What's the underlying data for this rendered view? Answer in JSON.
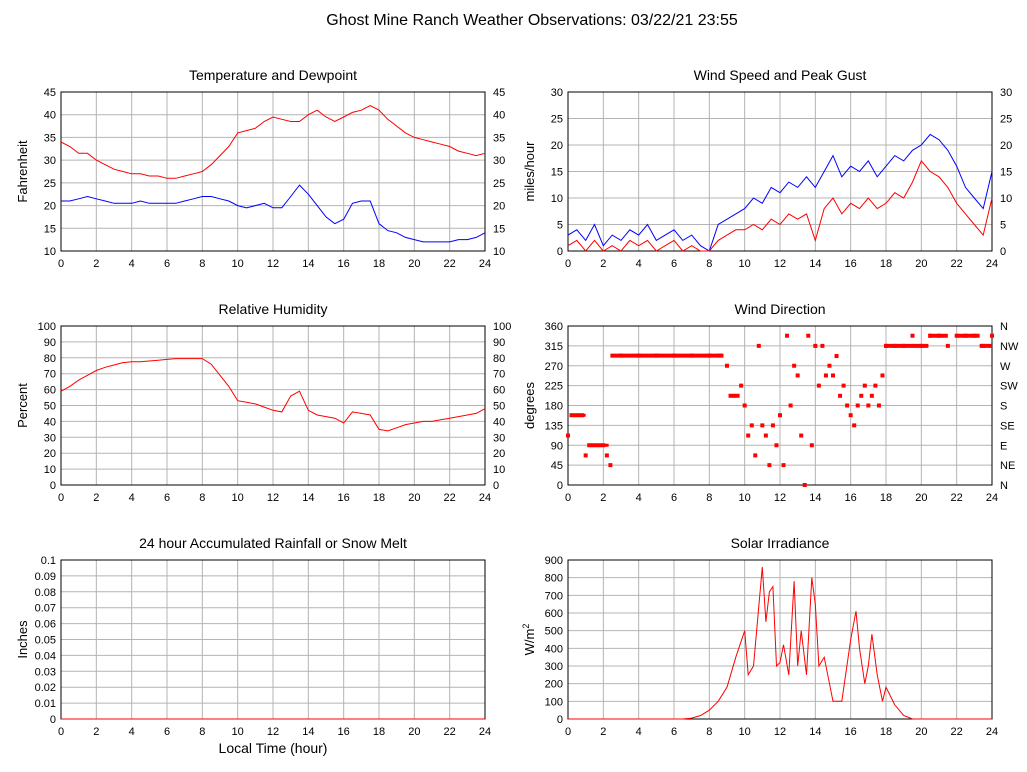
{
  "page": {
    "title": "Ghost Mine Ranch Weather Observations: 03/22/21 23:55"
  },
  "colors": {
    "red": "#ff0000",
    "blue": "#0000ff",
    "grid": "#b4b4b4",
    "axis": "#000000"
  },
  "chart_data": [
    {
      "id": "temp",
      "type": "line",
      "title": "Temperature and Dewpoint",
      "ylabel": "Fahrenheit",
      "xlabel": "",
      "xlim": [
        0,
        24
      ],
      "ylim": [
        10,
        45
      ],
      "xticks": [
        0,
        2,
        4,
        6,
        8,
        10,
        12,
        14,
        16,
        18,
        20,
        22,
        24
      ],
      "yticks": [
        10,
        15,
        20,
        25,
        30,
        35,
        40,
        45
      ],
      "right_axis": true,
      "grid": true,
      "series": [
        {
          "color": "#ff0000",
          "x": [
            0,
            0.5,
            1,
            1.5,
            2,
            2.5,
            3,
            3.5,
            4,
            4.5,
            5,
            5.5,
            6,
            6.5,
            7,
            7.5,
            8,
            8.5,
            9,
            9.5,
            10,
            10.5,
            11,
            11.5,
            12,
            12.5,
            13,
            13.5,
            14,
            14.5,
            15,
            15.5,
            16,
            16.5,
            17,
            17.5,
            18,
            18.5,
            19,
            19.5,
            20,
            20.5,
            21,
            21.5,
            22,
            22.5,
            23,
            23.5,
            24
          ],
          "y": [
            34,
            33,
            31.5,
            31.5,
            30,
            29,
            28,
            27.5,
            27,
            27,
            26.5,
            26.5,
            26,
            26,
            26.5,
            27,
            27.5,
            29,
            31,
            33,
            36,
            36.5,
            37,
            38.5,
            39.5,
            39,
            38.5,
            38.5,
            40,
            41,
            39.5,
            38.5,
            39.5,
            40.5,
            41,
            42,
            41,
            39,
            37.5,
            36,
            35,
            34.5,
            34,
            33.5,
            33,
            32,
            31.5,
            31,
            31.5
          ]
        },
        {
          "color": "#0000ff",
          "x": [
            0,
            0.5,
            1,
            1.5,
            2,
            2.5,
            3,
            3.5,
            4,
            4.5,
            5,
            5.5,
            6,
            6.5,
            7,
            7.5,
            8,
            8.5,
            9,
            9.5,
            10,
            10.5,
            11,
            11.5,
            12,
            12.5,
            13,
            13.5,
            14,
            14.5,
            15,
            15.5,
            16,
            16.5,
            17,
            17.5,
            18,
            18.5,
            19,
            19.5,
            20,
            20.5,
            21,
            21.5,
            22,
            22.5,
            23,
            23.5,
            24
          ],
          "y": [
            21,
            21,
            21.5,
            22,
            21.5,
            21,
            20.5,
            20.5,
            20.5,
            21,
            20.5,
            20.5,
            20.5,
            20.5,
            21,
            21.5,
            22,
            22,
            21.5,
            21,
            20,
            19.5,
            20,
            20.5,
            19.5,
            19.5,
            22,
            24.5,
            22.5,
            20,
            17.5,
            16,
            17,
            20.5,
            21,
            21,
            16,
            14.5,
            14,
            13,
            12.5,
            12,
            12,
            12,
            12,
            12.5,
            12.5,
            13,
            14
          ]
        }
      ]
    },
    {
      "id": "wind",
      "type": "line",
      "title": "Wind Speed and Peak Gust",
      "ylabel": "miles/hour",
      "xlabel": "",
      "xlim": [
        0,
        24
      ],
      "ylim": [
        0,
        30
      ],
      "xticks": [
        0,
        2,
        4,
        6,
        8,
        10,
        12,
        14,
        16,
        18,
        20,
        22,
        24
      ],
      "yticks": [
        0,
        5,
        10,
        15,
        20,
        25,
        30
      ],
      "right_axis": true,
      "grid": true,
      "series": [
        {
          "color": "#0000ff",
          "x": [
            0,
            0.5,
            1,
            1.5,
            2,
            2.5,
            3,
            3.5,
            4,
            4.5,
            5,
            5.5,
            6,
            6.5,
            7,
            7.5,
            8,
            8.5,
            9,
            9.5,
            10,
            10.5,
            11,
            11.5,
            12,
            12.5,
            13,
            13.5,
            14,
            14.5,
            15,
            15.5,
            16,
            16.5,
            17,
            17.5,
            18,
            18.5,
            19,
            19.5,
            20,
            20.5,
            21,
            21.5,
            22,
            22.5,
            23,
            23.5,
            24
          ],
          "y": [
            3,
            4,
            2,
            5,
            1,
            3,
            2,
            4,
            3,
            5,
            2,
            3,
            4,
            2,
            3,
            1,
            0,
            5,
            6,
            7,
            8,
            10,
            9,
            12,
            11,
            13,
            12,
            14,
            12,
            15,
            18,
            14,
            16,
            15,
            17,
            14,
            16,
            18,
            17,
            19,
            20,
            22,
            21,
            19,
            16,
            12,
            10,
            8,
            15
          ]
        },
        {
          "color": "#ff0000",
          "x": [
            0,
            0.5,
            1,
            1.5,
            2,
            2.5,
            3,
            3.5,
            4,
            4.5,
            5,
            5.5,
            6,
            6.5,
            7,
            7.5,
            8,
            8.5,
            9,
            9.5,
            10,
            10.5,
            11,
            11.5,
            12,
            12.5,
            13,
            13.5,
            14,
            14.5,
            15,
            15.5,
            16,
            16.5,
            17,
            17.5,
            18,
            18.5,
            19,
            19.5,
            20,
            20.5,
            21,
            21.5,
            22,
            22.5,
            23,
            23.5,
            24
          ],
          "y": [
            1,
            2,
            0,
            2,
            0,
            1,
            0,
            2,
            1,
            2,
            0,
            1,
            2,
            0,
            1,
            0,
            0,
            2,
            3,
            4,
            4,
            5,
            4,
            6,
            5,
            7,
            6,
            7,
            2,
            8,
            10,
            7,
            9,
            8,
            10,
            8,
            9,
            11,
            10,
            13,
            17,
            15,
            14,
            12,
            9,
            7,
            5,
            3,
            10
          ]
        }
      ]
    },
    {
      "id": "rh",
      "type": "line",
      "title": "Relative Humidity",
      "ylabel": "Percent",
      "xlabel": "",
      "xlim": [
        0,
        24
      ],
      "ylim": [
        0,
        100
      ],
      "xticks": [
        0,
        2,
        4,
        6,
        8,
        10,
        12,
        14,
        16,
        18,
        20,
        22,
        24
      ],
      "yticks": [
        0,
        10,
        20,
        30,
        40,
        50,
        60,
        70,
        80,
        90,
        100
      ],
      "right_axis": true,
      "grid": true,
      "series": [
        {
          "color": "#ff0000",
          "x": [
            0,
            0.5,
            1,
            1.5,
            2,
            2.5,
            3,
            3.5,
            4,
            4.5,
            5,
            5.5,
            6,
            6.5,
            7,
            7.5,
            8,
            8.5,
            9,
            9.5,
            10,
            10.5,
            11,
            11.5,
            12,
            12.5,
            13,
            13.5,
            14,
            14.5,
            15,
            15.5,
            16,
            16.5,
            17,
            17.5,
            18,
            18.5,
            19,
            19.5,
            20,
            20.5,
            21,
            21.5,
            22,
            22.5,
            23,
            23.5,
            24
          ],
          "y": [
            59,
            62,
            66,
            69,
            72,
            74,
            75.5,
            77,
            77.5,
            77.5,
            78,
            78.5,
            79,
            79.5,
            79.5,
            79.5,
            79.5,
            76,
            69,
            62,
            53,
            52,
            51,
            49,
            47,
            46,
            56,
            59,
            47,
            44,
            43,
            42,
            39,
            46,
            45,
            44,
            35,
            34,
            36,
            38,
            39,
            40,
            40,
            41,
            42,
            43,
            44,
            45,
            48
          ]
        }
      ]
    },
    {
      "id": "wdir",
      "type": "scatter",
      "title": "Wind Direction",
      "ylabel": "degrees",
      "xlabel": "",
      "xlim": [
        0,
        24
      ],
      "ylim": [
        0,
        360
      ],
      "xticks": [
        0,
        2,
        4,
        6,
        8,
        10,
        12,
        14,
        16,
        18,
        20,
        22,
        24
      ],
      "yticks": [
        0,
        45,
        90,
        135,
        180,
        225,
        270,
        315,
        360
      ],
      "right_ticklabels": [
        "N",
        "NE",
        "E",
        "SE",
        "S",
        "SW",
        "W",
        "NW",
        "N"
      ],
      "grid": true,
      "series": [
        {
          "color": "#ff0000",
          "x": [
            0,
            0.2,
            0.4,
            0.6,
            0.8,
            1.0,
            1.2,
            1.4,
            1.6,
            1.8,
            2.0,
            2.2,
            2.4,
            3.0,
            4.0,
            5.0,
            6.0,
            7.0,
            8.0,
            8.6,
            9.0,
            9.2,
            9.4,
            9.6,
            9.8,
            10.0,
            10.2,
            10.4,
            10.6,
            10.8,
            11.0,
            11.2,
            11.4,
            11.6,
            11.8,
            12.0,
            12.2,
            12.4,
            12.6,
            12.8,
            13.0,
            13.2,
            13.4,
            13.6,
            13.8,
            14.0,
            14.2,
            14.4,
            14.6,
            14.8,
            15.0,
            15.2,
            15.4,
            15.6,
            15.8,
            16.0,
            16.2,
            16.4,
            16.6,
            16.8,
            17.0,
            17.2,
            17.4,
            17.6,
            17.8,
            18.0,
            18.5,
            19.0,
            19.5,
            20.0,
            20.5,
            21.0,
            21.5,
            22.0,
            22.5,
            23.0,
            23.5,
            24.0
          ],
          "y": [
            112,
            158,
            158,
            158,
            158,
            67,
            90,
            90,
            90,
            90,
            90,
            67,
            45,
            293,
            293,
            293,
            293,
            293,
            293,
            293,
            270,
            202,
            202,
            202,
            225,
            180,
            112,
            135,
            67,
            315,
            135,
            112,
            45,
            135,
            90,
            158,
            45,
            338,
            180,
            270,
            248,
            112,
            0,
            338,
            90,
            315,
            225,
            315,
            248,
            270,
            248,
            292,
            202,
            225,
            180,
            158,
            135,
            180,
            202,
            225,
            180,
            202,
            225,
            180,
            248,
            315,
            315,
            315,
            338,
            315,
            338,
            338,
            315,
            338,
            338,
            338,
            315,
            338
          ]
        }
      ]
    },
    {
      "id": "rain",
      "type": "line",
      "title": "24 hour Accumulated Rainfall or Snow Melt",
      "ylabel": "Inches",
      "xlabel": "Local Time (hour)",
      "xlim": [
        0,
        24
      ],
      "ylim": [
        0,
        0.1
      ],
      "xticks": [
        0,
        2,
        4,
        6,
        8,
        10,
        12,
        14,
        16,
        18,
        20,
        22,
        24
      ],
      "yticks": [
        0,
        0.01,
        0.02,
        0.03,
        0.04,
        0.05,
        0.06,
        0.07,
        0.08,
        0.09,
        0.1
      ],
      "right_axis": false,
      "grid": true,
      "series": [
        {
          "color": "#ff0000",
          "x": [
            0,
            24
          ],
          "y": [
            0,
            0
          ]
        }
      ]
    },
    {
      "id": "solar",
      "type": "line",
      "title": "Solar Irradiance",
      "ylabel": "W/m",
      "ylabel_sup": "2",
      "xlabel": "",
      "xlim": [
        0,
        24
      ],
      "ylim": [
        0,
        900
      ],
      "xticks": [
        0,
        2,
        4,
        6,
        8,
        10,
        12,
        14,
        16,
        18,
        20,
        22,
        24
      ],
      "yticks": [
        0,
        100,
        200,
        300,
        400,
        500,
        600,
        700,
        800,
        900
      ],
      "right_axis": false,
      "grid": true,
      "series": [
        {
          "color": "#ff0000",
          "x": [
            0,
            6.5,
            7.0,
            7.5,
            8.0,
            8.5,
            9.0,
            9.5,
            10.0,
            10.2,
            10.5,
            11.0,
            11.2,
            11.4,
            11.6,
            11.8,
            12.0,
            12.2,
            12.5,
            12.8,
            13.0,
            13.2,
            13.5,
            13.8,
            14.0,
            14.2,
            14.5,
            15.0,
            15.5,
            16.0,
            16.3,
            16.5,
            16.8,
            17.0,
            17.2,
            17.5,
            17.8,
            18.0,
            18.5,
            19.0,
            19.5,
            20.0,
            24.0
          ],
          "y": [
            0,
            0,
            5,
            20,
            50,
            100,
            180,
            350,
            500,
            250,
            300,
            860,
            550,
            720,
            750,
            300,
            320,
            420,
            250,
            780,
            300,
            500,
            250,
            800,
            650,
            300,
            350,
            100,
            100,
            450,
            610,
            400,
            200,
            300,
            480,
            250,
            100,
            180,
            80,
            20,
            0,
            0,
            0
          ]
        }
      ]
    }
  ]
}
